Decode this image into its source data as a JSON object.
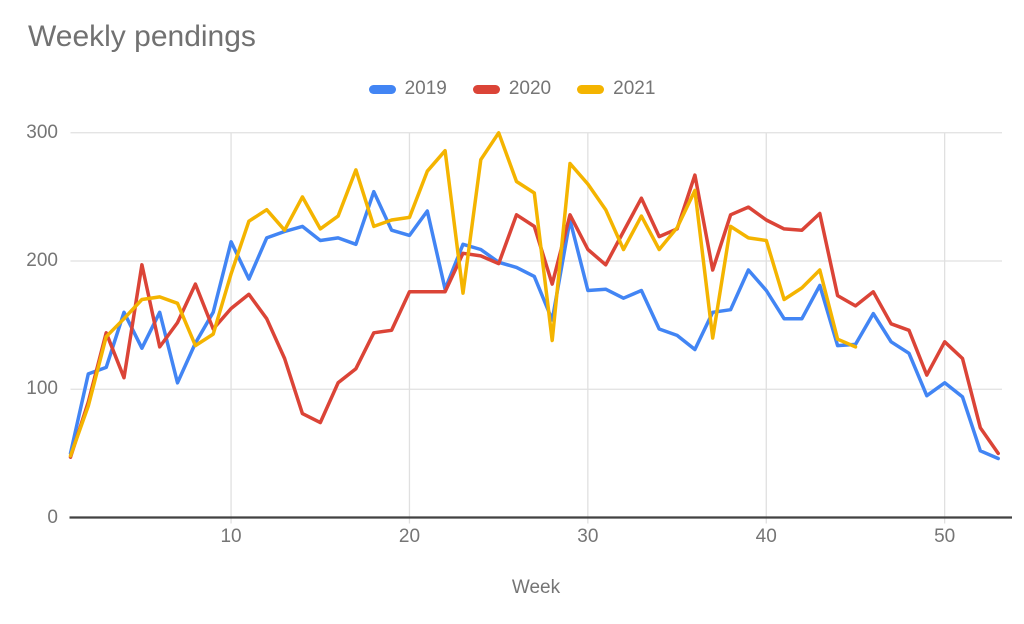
{
  "title": "Weekly pendings",
  "legend": {
    "items": [
      {
        "label": "2019",
        "color": "#4285f4"
      },
      {
        "label": "2020",
        "color": "#db4437"
      },
      {
        "label": "2021",
        "color": "#f4b400"
      }
    ]
  },
  "x_axis": {
    "label": "Week",
    "ticks": [
      10,
      20,
      30,
      40,
      50
    ]
  },
  "y_axis": {
    "ticks": [
      0,
      100,
      200,
      300
    ]
  },
  "chart_data": {
    "type": "line",
    "title": "Weekly pendings",
    "xlabel": "Week",
    "ylabel": "",
    "x_range": [
      1,
      53
    ],
    "ylim": [
      0,
      300
    ],
    "x_tick_labels": [
      10,
      20,
      30,
      40,
      50
    ],
    "y_tick_labels": [
      0,
      100,
      200,
      300
    ],
    "grid": true,
    "legend_position": "top",
    "series": [
      {
        "name": "2019",
        "color": "#4285f4",
        "start_week": 1,
        "values": [
          50,
          112,
          117,
          160,
          132,
          160,
          105,
          136,
          160,
          215,
          186,
          218,
          223,
          227,
          216,
          218,
          213,
          254,
          224,
          220,
          239,
          178,
          213,
          209,
          199,
          195,
          188,
          154,
          232,
          177,
          178,
          171,
          177,
          147,
          142,
          131,
          160,
          162,
          193,
          177,
          155,
          155,
          181,
          134,
          135,
          159,
          137,
          128,
          95,
          105,
          94,
          52,
          46
        ]
      },
      {
        "name": "2020",
        "color": "#db4437",
        "start_week": 1,
        "values": [
          47,
          90,
          144,
          109,
          197,
          133,
          152,
          182,
          147,
          163,
          174,
          155,
          124,
          81,
          74,
          105,
          116,
          144,
          146,
          176,
          176,
          176,
          206,
          204,
          198,
          236,
          227,
          182,
          236,
          209,
          197,
          223,
          249,
          219,
          225,
          267,
          193,
          236,
          242,
          232,
          225,
          224,
          237,
          173,
          165,
          176,
          151,
          146,
          111,
          137,
          124,
          70,
          50
        ]
      },
      {
        "name": "2021",
        "color": "#f4b400",
        "start_week": 1,
        "values": [
          48,
          87,
          141,
          155,
          170,
          172,
          167,
          134,
          143,
          190,
          231,
          240,
          224,
          250,
          225,
          235,
          271,
          227,
          232,
          234,
          270,
          286,
          175,
          279,
          300,
          262,
          253,
          138,
          276,
          260,
          240,
          209,
          235,
          209,
          226,
          255,
          140,
          227,
          218,
          216,
          170,
          179,
          193,
          139,
          133
        ]
      }
    ],
    "style": {
      "gridline_color": "#e0e0e0",
      "axis_color": "#424242",
      "tick_label_color": "#757575",
      "title_color": "#717171",
      "line_width": 3.5
    }
  }
}
